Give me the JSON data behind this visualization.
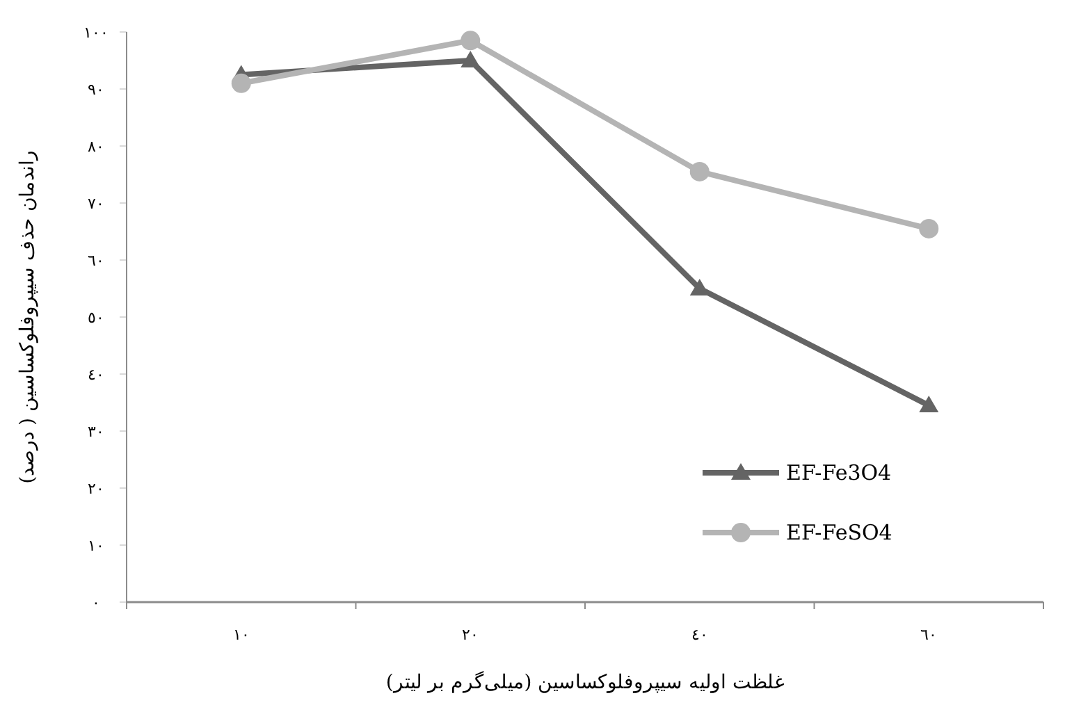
{
  "chart_data": {
    "type": "line",
    "xlabel": "غلظت اولیه سیپروفلوکساسین (میلی‌گرم بر لیتر)",
    "ylabel": "راندمان حذف سیپروفلوکساسین ( درصد)",
    "categories": [
      "١٠",
      "٢٠",
      "٤٠",
      "٦٠"
    ],
    "series": [
      {
        "name": "EF-Fe3O4",
        "color": "#646464",
        "marker": "triangle",
        "values": [
          92.5,
          95,
          55,
          34.5
        ]
      },
      {
        "name": "EF-FeSO4",
        "color": "#b4b4b4",
        "marker": "circle",
        "values": [
          91,
          98.5,
          75.5,
          65.5
        ]
      }
    ],
    "ylim": [
      0,
      100
    ],
    "yticks": [
      {
        "value": 0,
        "label": "٠"
      },
      {
        "value": 10,
        "label": "١٠"
      },
      {
        "value": 20,
        "label": "٢٠"
      },
      {
        "value": 30,
        "label": "٣٠"
      },
      {
        "value": 40,
        "label": "٤٠"
      },
      {
        "value": 50,
        "label": "٥٠"
      },
      {
        "value": 60,
        "label": "٦٠"
      },
      {
        "value": 70,
        "label": "٧٠"
      },
      {
        "value": 80,
        "label": "٨٠"
      },
      {
        "value": 90,
        "label": "٩٠"
      },
      {
        "value": 100,
        "label": "١٠٠"
      }
    ],
    "grid": false,
    "legend": "bottom right",
    "line_style": "solid"
  }
}
